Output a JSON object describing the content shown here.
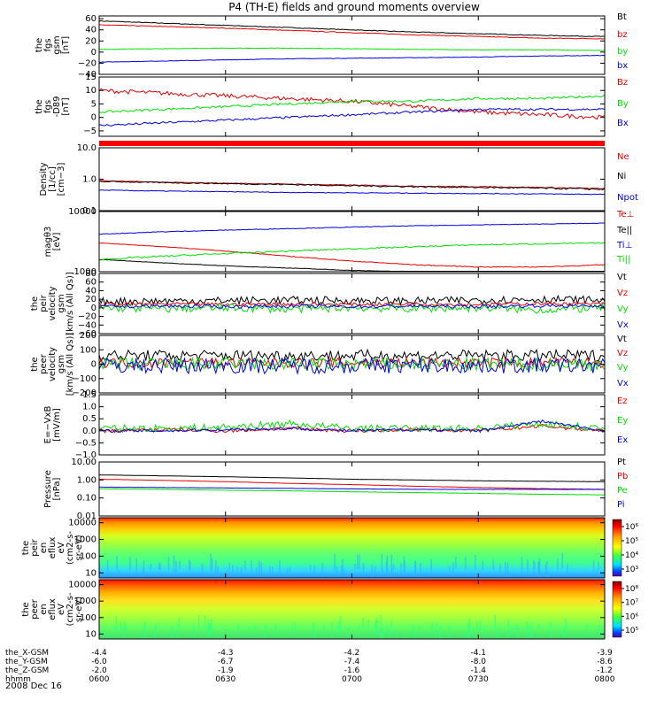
{
  "title": "P4 (TH-E) fields and ground moments overview",
  "date_label": "2008 Dec 16",
  "colors": {
    "black": "#000000",
    "red": "#e60000",
    "green": "#00e000",
    "blue": "#0000e0"
  },
  "orbit": {
    "rows": [
      {
        "label": "the_X-GSM",
        "values": [
          "-4.4",
          "-4.3",
          "-4.2",
          "-4.1",
          "-3.9"
        ]
      },
      {
        "label": "the_Y-GSM",
        "values": [
          "-6.0",
          "-6.7",
          "-7.4",
          "-8.0",
          "-8.6"
        ]
      },
      {
        "label": "the_Z-GSM",
        "values": [
          "-2.0",
          "-1.9",
          "-1.6",
          "-1.4",
          "-1.2"
        ]
      },
      {
        "label": "hhmm",
        "values": [
          "0600",
          "0630",
          "0700",
          "0730",
          "0800"
        ]
      }
    ]
  },
  "chart_data": [
    {
      "type": "line",
      "ylabel": [
        "the",
        "fgs",
        "gsm",
        "[nT]"
      ],
      "ylim": [
        -40,
        65
      ],
      "ticks": [
        "60",
        "40",
        "20",
        "0",
        "−20",
        "−40"
      ],
      "tickvals": [
        60,
        40,
        20,
        0,
        -20,
        -40
      ],
      "log": false,
      "series": [
        {
          "name": "Bt",
          "color": "black",
          "values": [
            56,
            52,
            48,
            44,
            40,
            36,
            33,
            30,
            28
          ],
          "noise": 0.6
        },
        {
          "name": "bz",
          "color": "red",
          "values": [
            49,
            46,
            43,
            39,
            35,
            31,
            28,
            25,
            24
          ],
          "noise": 0.6
        },
        {
          "name": "by",
          "color": "green",
          "values": [
            5,
            6,
            7,
            7,
            6,
            5,
            4,
            4,
            3
          ],
          "noise": 0.4
        },
        {
          "name": "bx",
          "color": "blue",
          "values": [
            -18,
            -16,
            -14,
            -12,
            -11,
            -10,
            -9,
            -7,
            -6
          ],
          "noise": 0.4
        }
      ]
    },
    {
      "type": "line",
      "ylabel": [
        "the",
        "fgs",
        "-D89",
        "[nT]"
      ],
      "ylim": [
        -7,
        15
      ],
      "ticks": [
        "15",
        "10",
        "5",
        "0",
        "−5"
      ],
      "tickvals": [
        15,
        10,
        5,
        0,
        -5
      ],
      "log": false,
      "series": [
        {
          "name": "Bz",
          "color": "red",
          "values": [
            10,
            9,
            8,
            7,
            6,
            4,
            2,
            1,
            0
          ],
          "noise": 0.8
        },
        {
          "name": "By",
          "color": "green",
          "values": [
            2,
            3,
            4,
            5,
            6,
            6,
            7,
            7,
            8
          ],
          "noise": 0.4
        },
        {
          "name": "Bx",
          "color": "blue",
          "values": [
            -3,
            -2,
            -1,
            0,
            1,
            2,
            3,
            3,
            3
          ],
          "noise": 0.4
        }
      ]
    },
    {
      "type": "line",
      "ylabel": [
        "Density",
        "[1/cc]",
        "[cm−3]"
      ],
      "ylim": [
        0.1,
        10
      ],
      "ticks": [
        "10.0",
        "1.0",
        "0.1"
      ],
      "tickvals": [
        10,
        1,
        0.1
      ],
      "log": true,
      "series": [
        {
          "name": "Ne",
          "color": "red",
          "values": [
            0.9,
            0.8,
            0.75,
            0.7,
            0.65,
            0.6,
            0.58,
            0.55,
            0.5
          ],
          "noise": 0.02
        },
        {
          "name": "Ni",
          "color": "black",
          "values": [
            0.85,
            0.78,
            0.72,
            0.68,
            0.62,
            0.58,
            0.55,
            0.52,
            0.48
          ],
          "noise": 0.03
        },
        {
          "name": "Npot",
          "color": "blue",
          "values": [
            0.45,
            0.42,
            0.4,
            0.38,
            0.37,
            0.36,
            0.35,
            0.34,
            0.33
          ],
          "noise": 0.01
        }
      ]
    },
    {
      "type": "line",
      "ylabel": [
        "magθ3",
        "[eV]"
      ],
      "ylim": [
        1000,
        10000
      ],
      "ticks": [
        "10000",
        "1000"
      ],
      "tickvals": [
        10000,
        1000
      ],
      "log": true,
      "series": [
        {
          "name": "Te⊥",
          "color": "red",
          "values": [
            3000,
            2600,
            2200,
            1800,
            1500,
            1300,
            1200,
            1200,
            1300
          ],
          "noise": 20
        },
        {
          "name": "Te||",
          "color": "black",
          "values": [
            1600,
            1400,
            1250,
            1150,
            1050,
            1000,
            980,
            980,
            1000
          ],
          "noise": 10
        },
        {
          "name": "Ti⊥",
          "color": "blue",
          "values": [
            4200,
            4600,
            4900,
            5200,
            5500,
            5800,
            6000,
            6200,
            6400
          ],
          "noise": 60
        },
        {
          "name": "Ti||",
          "color": "green",
          "values": [
            1600,
            1800,
            2000,
            2200,
            2400,
            2600,
            2800,
            2900,
            3000
          ],
          "noise": 60
        }
      ]
    },
    {
      "type": "line",
      "ylabel": [
        "the",
        "peir",
        "velocity",
        "gsm",
        "[km/s (All Qs)]"
      ],
      "ylim": [
        -60,
        80
      ],
      "ticks": [
        "80",
        "60",
        "40",
        "20",
        "0",
        "−20",
        "−40",
        "−60"
      ],
      "tickvals": [
        80,
        60,
        40,
        20,
        0,
        -20,
        -40,
        -60
      ],
      "log": false,
      "series": [
        {
          "name": "Vt",
          "color": "black",
          "values": [
            15,
            16,
            17,
            18,
            17,
            16,
            18,
            20,
            18
          ],
          "noise": 9
        },
        {
          "name": "Vz",
          "color": "red",
          "values": [
            8,
            9,
            8,
            9,
            8,
            9,
            8,
            10,
            9
          ],
          "noise": 4
        },
        {
          "name": "Vy",
          "color": "green",
          "values": [
            0,
            -2,
            0,
            -3,
            0,
            -2,
            0,
            -5,
            0
          ],
          "noise": 9
        },
        {
          "name": "Vx",
          "color": "blue",
          "values": [
            3,
            4,
            3,
            4,
            3,
            4,
            3,
            5,
            4
          ],
          "noise": 4
        }
      ]
    },
    {
      "type": "line",
      "ylabel": [
        "the",
        "peer",
        "velocity",
        "gsm",
        "[km/s (All Qs)]"
      ],
      "ylim": [
        -200,
        200
      ],
      "ticks": [
        "200",
        "100",
        "0",
        "−100",
        "−200"
      ],
      "tickvals": [
        200,
        100,
        0,
        -100,
        -200
      ],
      "log": false,
      "series": [
        {
          "name": "Vt",
          "color": "black",
          "values": [
            60,
            60,
            60,
            60,
            60,
            60,
            60,
            60,
            60
          ],
          "noise": 40
        },
        {
          "name": "Vz",
          "color": "red",
          "values": [
            10,
            10,
            10,
            10,
            10,
            10,
            10,
            10,
            10
          ],
          "noise": 35
        },
        {
          "name": "Vy",
          "color": "green",
          "values": [
            0,
            0,
            0,
            0,
            0,
            0,
            0,
            0,
            0
          ],
          "noise": 45
        },
        {
          "name": "Vx",
          "color": "blue",
          "values": [
            -10,
            -10,
            -10,
            -10,
            -10,
            -10,
            -10,
            -10,
            -10
          ],
          "noise": 55
        }
      ]
    },
    {
      "type": "line",
      "ylabel": [
        "E=−VxB",
        "[mV/m]"
      ],
      "ylim": [
        -1,
        1.5
      ],
      "ticks": [
        "1.5",
        "1.0",
        "0.5",
        "0.0",
        "−0.5",
        "−1.0"
      ],
      "tickvals": [
        1.5,
        1,
        0.5,
        0,
        -0.5,
        -1
      ],
      "log": false,
      "series": [
        {
          "name": "Ez",
          "color": "red",
          "values": [
            0,
            0.05,
            0,
            0.1,
            0,
            0.05,
            0,
            0.2,
            0
          ],
          "noise": 0.08
        },
        {
          "name": "Ey",
          "color": "green",
          "values": [
            0.1,
            0.1,
            0.15,
            0.3,
            0.1,
            0.1,
            0.1,
            0.3,
            0.1
          ],
          "noise": 0.15
        },
        {
          "name": "Ex",
          "color": "blue",
          "values": [
            0,
            0,
            0.05,
            0.1,
            0,
            0.05,
            0,
            0.4,
            0
          ],
          "noise": 0.06
        }
      ]
    },
    {
      "type": "line",
      "ylabel": [
        "Pressure",
        "[nPa]"
      ],
      "ylim": [
        0.01,
        10
      ],
      "ticks": [
        "10.00",
        "1.00",
        "0.10",
        "0.01"
      ],
      "tickvals": [
        10,
        1,
        0.1,
        0.01
      ],
      "log": true,
      "series": [
        {
          "name": "Pt",
          "color": "black",
          "values": [
            1.9,
            1.7,
            1.5,
            1.3,
            1.1,
            1.0,
            0.9,
            0.85,
            0.8
          ],
          "noise": 0.01
        },
        {
          "name": "Pb",
          "color": "red",
          "values": [
            1.1,
            0.95,
            0.8,
            0.65,
            0.55,
            0.45,
            0.38,
            0.33,
            0.3
          ],
          "noise": 0.005
        },
        {
          "name": "Pe",
          "color": "green",
          "values": [
            0.32,
            0.3,
            0.27,
            0.25,
            0.22,
            0.2,
            0.18,
            0.16,
            0.15
          ],
          "noise": 0.003
        },
        {
          "name": "Pi",
          "color": "blue",
          "values": [
            0.4,
            0.38,
            0.36,
            0.34,
            0.32,
            0.3,
            0.3,
            0.3,
            0.3
          ],
          "noise": 0.004
        }
      ]
    },
    {
      "type": "heatmap",
      "ylabel": [
        "the",
        "peir",
        "en",
        "eflux",
        "eV",
        "(cm2-s-",
        "sr-eV)"
      ],
      "ylim": [
        5,
        20000
      ],
      "ticks": [
        "10000",
        "1000",
        "100",
        "10"
      ],
      "tickvals": [
        10000,
        1000,
        100,
        10
      ],
      "log": true,
      "colorbar": {
        "ticks": [
          "10⁶",
          "10⁵",
          "10⁴",
          "10³"
        ]
      }
    },
    {
      "type": "heatmap",
      "ylabel": [
        "the",
        "peer",
        "en",
        "eflux",
        "eV",
        "(cm2-s-",
        "sr-eV)"
      ],
      "ylim": [
        5,
        20000
      ],
      "ticks": [
        "10000",
        "1000",
        "100",
        "10"
      ],
      "tickvals": [
        10000,
        1000,
        100,
        10
      ],
      "log": true,
      "colorbar": {
        "ticks": [
          "10⁸",
          "10⁷",
          "10⁶",
          "10⁵"
        ]
      }
    }
  ]
}
